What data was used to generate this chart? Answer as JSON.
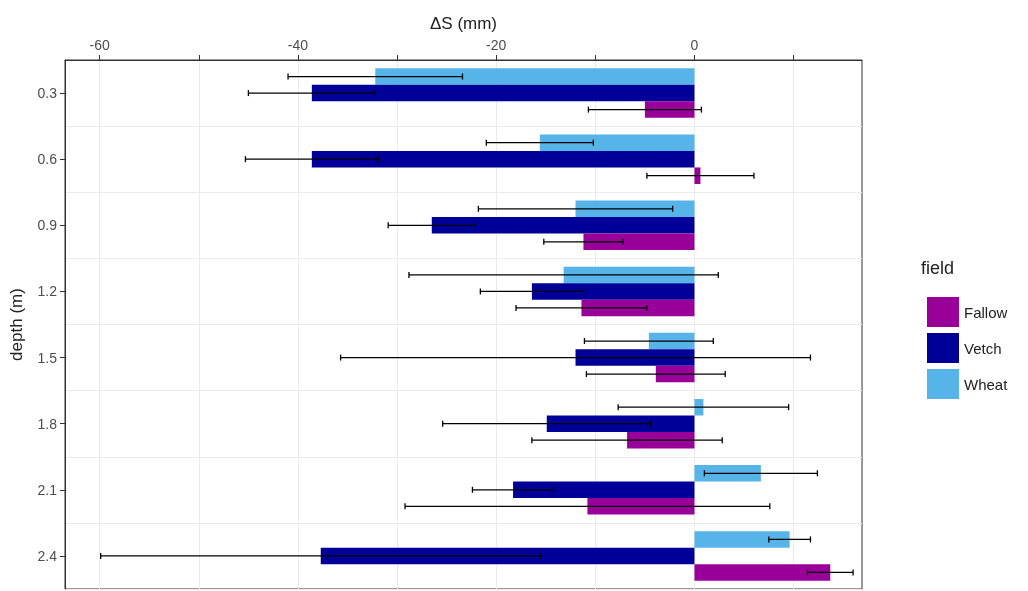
{
  "chart_data": {
    "type": "bar",
    "orientation": "horizontal",
    "xlabel": "ΔS (mm)",
    "ylabel": "depth (m)",
    "legend_title": "field",
    "legend": "right",
    "grid": true,
    "categories": [
      "0.3",
      "0.6",
      "0.9",
      "1.2",
      "1.5",
      "1.8",
      "2.1",
      "2.4"
    ],
    "xlim": [
      -63.5,
      16.9
    ],
    "xticks": [
      -60,
      {
        "value": -50,
        "label": null
      },
      -40,
      {
        "value": -30,
        "label": null
      },
      -20,
      {
        "value": -10,
        "label": null
      },
      0,
      {
        "value": 10,
        "label": null
      }
    ],
    "series": [
      {
        "name": "Fallow",
        "color": "#990099",
        "values": [
          -5.0,
          0.6,
          -11.2,
          -11.4,
          -3.9,
          -6.8,
          -10.8,
          13.7
        ],
        "errors": [
          5.7,
          5.4,
          4.0,
          6.6,
          7.0,
          9.6,
          18.4,
          2.3
        ]
      },
      {
        "name": "Vetch",
        "color": "#000099",
        "values": [
          -38.6,
          -38.6,
          -26.5,
          -16.4,
          -12.0,
          -14.9,
          -18.3,
          -37.7
        ],
        "errors": [
          6.4,
          6.7,
          4.4,
          5.2,
          23.7,
          10.5,
          4.1,
          22.2
        ]
      },
      {
        "name": "Wheat",
        "color": "#56b4e9",
        "values": [
          -32.2,
          -15.6,
          -12.0,
          -13.2,
          -4.6,
          0.9,
          6.7,
          9.6
        ],
        "errors": [
          8.8,
          5.4,
          9.8,
          15.6,
          6.5,
          8.6,
          5.7,
          2.1
        ]
      }
    ]
  }
}
